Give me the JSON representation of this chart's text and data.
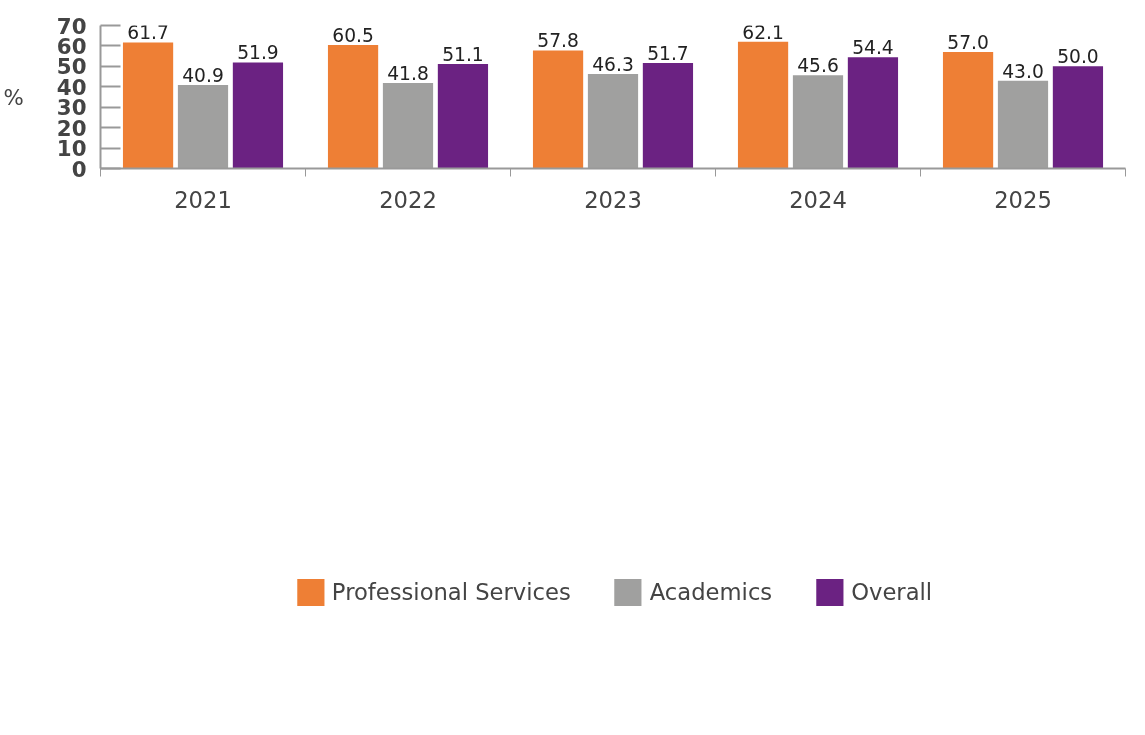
{
  "chart_data": {
    "type": "bar",
    "ylabel": "%",
    "categories": [
      "2021",
      "2022",
      "2023",
      "2024",
      "2025"
    ],
    "series": [
      {
        "name": "Professional Services",
        "color": "#ee7f35",
        "values": [
          61.7,
          60.5,
          57.8,
          62.1,
          57.0
        ]
      },
      {
        "name": "Academics",
        "color": "#a0a09f",
        "values": [
          40.9,
          41.8,
          46.3,
          45.6,
          43.0
        ]
      },
      {
        "name": "Overall",
        "color": "#6b2282",
        "values": [
          51.9,
          51.1,
          51.7,
          54.4,
          50.0
        ]
      }
    ],
    "value_labels": [
      [
        "61.7",
        "60.5",
        "57.8",
        "62.1",
        "57.0"
      ],
      [
        "40.9",
        "41.8",
        "46.3",
        "45.6",
        "43.0"
      ],
      [
        "51.9",
        "51.1",
        "51.7",
        "54.4",
        "50.0"
      ]
    ],
    "ylim": [
      0,
      70
    ],
    "yticks": [
      0,
      10,
      20,
      30,
      40,
      50,
      60,
      70
    ],
    "grid": false,
    "legend": "bottom"
  }
}
